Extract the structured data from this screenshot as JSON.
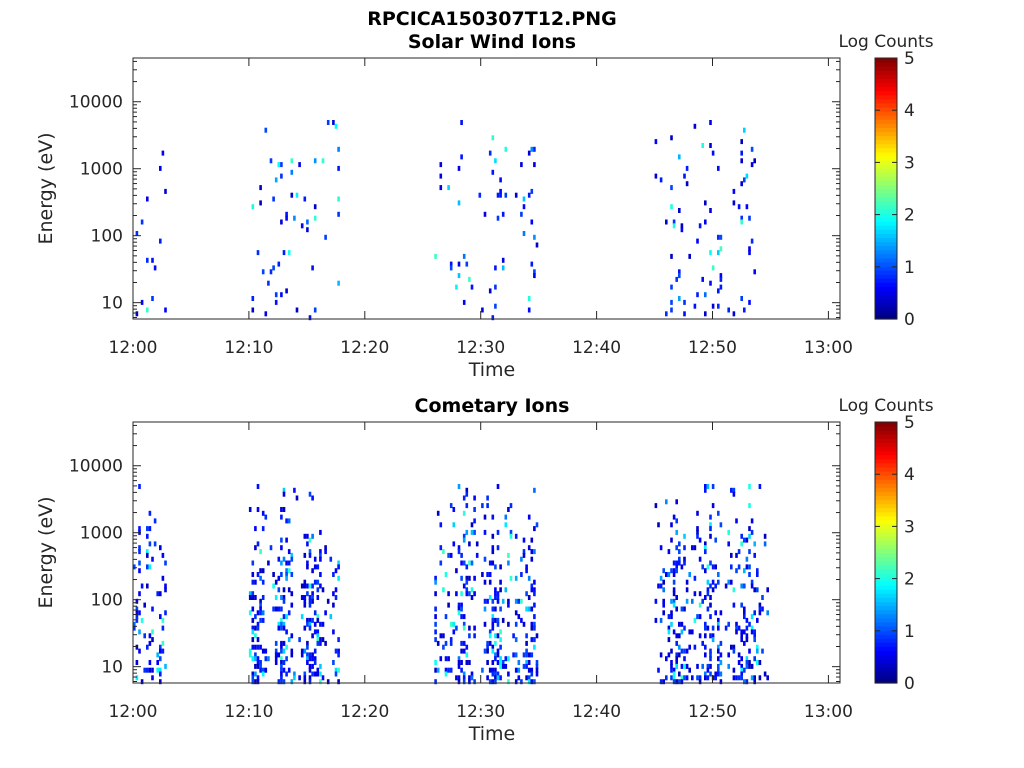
{
  "figure": {
    "title": "RPCICA150307T12.PNG"
  },
  "colors": {
    "colormap": "jet",
    "axis": "#262626",
    "background": "#ffffff"
  },
  "chart_data": [
    {
      "type": "heatmap",
      "title": "Solar Wind Ions",
      "xlabel": "Time",
      "ylabel": "Energy (eV)",
      "colorbar_label": "Log Counts",
      "colorbar_ticks": [
        "0",
        "1",
        "2",
        "3",
        "4",
        "5"
      ],
      "colorbar_range": [
        0,
        5
      ],
      "x_ticks": [
        "12:00",
        "12:10",
        "12:20",
        "12:30",
        "12:40",
        "12:50",
        "13:00"
      ],
      "y_ticks": [
        "10",
        "100",
        "1000",
        "10000"
      ],
      "y_scale": "log",
      "xlim": [
        "12:00",
        "13:01"
      ],
      "ylim": [
        5.7,
        45000
      ],
      "grid": false,
      "bursts": [
        {
          "start": "12:00",
          "end": "12:03",
          "level": 0.3
        },
        {
          "start": "12:10",
          "end": "12:18",
          "level": 0.4
        },
        {
          "start": "12:26",
          "end": "12:35",
          "level": 0.4
        },
        {
          "start": "12:45",
          "end": "12:55",
          "level": 0.4
        }
      ]
    },
    {
      "type": "heatmap",
      "title": "Cometary Ions",
      "xlabel": "Time",
      "ylabel": "Energy (eV)",
      "colorbar_label": "Log Counts",
      "colorbar_ticks": [
        "0",
        "1",
        "2",
        "3",
        "4",
        "5"
      ],
      "colorbar_range": [
        0,
        5
      ],
      "x_ticks": [
        "12:00",
        "12:10",
        "12:20",
        "12:30",
        "12:40",
        "12:50",
        "13:00"
      ],
      "y_ticks": [
        "10",
        "100",
        "1000",
        "10000"
      ],
      "y_scale": "log",
      "xlim": [
        "12:00",
        "13:01"
      ],
      "ylim": [
        5.7,
        45000
      ],
      "grid": false,
      "bursts": [
        {
          "start": "12:00",
          "end": "12:03",
          "level": 0.8
        },
        {
          "start": "12:10",
          "end": "12:18",
          "level": 1.0
        },
        {
          "start": "12:26",
          "end": "12:35",
          "level": 1.0
        },
        {
          "start": "12:45",
          "end": "12:55",
          "level": 1.0
        }
      ]
    }
  ]
}
